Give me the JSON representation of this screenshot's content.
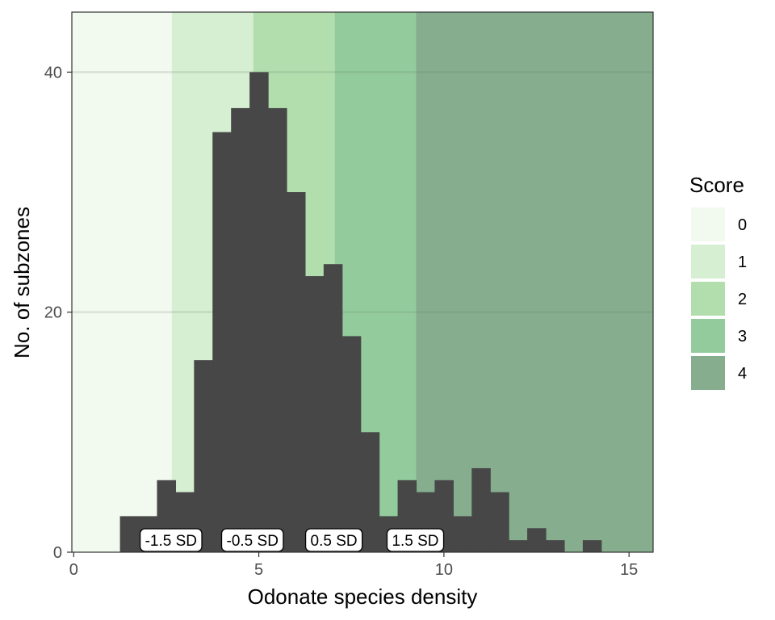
{
  "chart_data": {
    "type": "bar",
    "subtype": "histogram",
    "xlabel": "Odonate species density",
    "ylabel": "No. of subzones",
    "xlim": [
      -0.05,
      15.65
    ],
    "ylim": [
      0,
      45
    ],
    "x_ticks": [
      0,
      5,
      10,
      15
    ],
    "y_ticks": [
      0,
      20,
      40
    ],
    "grid": "horizontal major lines at 20 and 40",
    "bin_width": 0.5,
    "bins": [
      {
        "start": 1.25,
        "end": 1.75,
        "count": 3
      },
      {
        "start": 1.75,
        "end": 2.25,
        "count": 3
      },
      {
        "start": 2.25,
        "end": 2.75,
        "count": 6
      },
      {
        "start": 2.75,
        "end": 3.25,
        "count": 5
      },
      {
        "start": 3.25,
        "end": 3.75,
        "count": 16
      },
      {
        "start": 3.75,
        "end": 4.25,
        "count": 35
      },
      {
        "start": 4.25,
        "end": 4.75,
        "count": 37
      },
      {
        "start": 4.75,
        "end": 5.25,
        "count": 40
      },
      {
        "start": 5.25,
        "end": 5.75,
        "count": 37
      },
      {
        "start": 5.75,
        "end": 6.25,
        "count": 30
      },
      {
        "start": 6.25,
        "end": 6.75,
        "count": 23
      },
      {
        "start": 6.75,
        "end": 7.25,
        "count": 24
      },
      {
        "start": 7.25,
        "end": 7.75,
        "count": 18
      },
      {
        "start": 7.75,
        "end": 8.25,
        "count": 10
      },
      {
        "start": 8.25,
        "end": 8.75,
        "count": 3
      },
      {
        "start": 8.75,
        "end": 9.25,
        "count": 6
      },
      {
        "start": 9.25,
        "end": 9.75,
        "count": 5
      },
      {
        "start": 9.75,
        "end": 10.25,
        "count": 6
      },
      {
        "start": 10.25,
        "end": 10.75,
        "count": 3
      },
      {
        "start": 10.75,
        "end": 11.25,
        "count": 7
      },
      {
        "start": 11.25,
        "end": 11.75,
        "count": 5
      },
      {
        "start": 11.75,
        "end": 12.25,
        "count": 1
      },
      {
        "start": 12.25,
        "end": 12.75,
        "count": 2
      },
      {
        "start": 12.75,
        "end": 13.25,
        "count": 1
      },
      {
        "start": 13.25,
        "end": 13.75,
        "count": 0
      },
      {
        "start": 13.75,
        "end": 14.25,
        "count": 1
      }
    ],
    "bar_color": "#474747",
    "score_bands": [
      {
        "score": "0",
        "from": -0.05,
        "to": 2.65,
        "color": "#f2f9ef"
      },
      {
        "score": "1",
        "from": 2.65,
        "to": 4.85,
        "color": "#d6eed2"
      },
      {
        "score": "2",
        "from": 4.85,
        "to": 7.05,
        "color": "#b2deae"
      },
      {
        "score": "3",
        "from": 7.05,
        "to": 9.25,
        "color": "#93cb9c"
      },
      {
        "score": "4",
        "from": 9.25,
        "to": 15.65,
        "color": "#86ae8e"
      }
    ],
    "sd_annotations": [
      {
        "text": "-1.5 SD",
        "x": 2.65
      },
      {
        "text": "-0.5 SD",
        "x": 4.85
      },
      {
        "text": "0.5 SD",
        "x": 7.05
      },
      {
        "text": "1.5 SD",
        "x": 9.25
      }
    ],
    "legend": {
      "title": "Score",
      "position": "right",
      "items": [
        "0",
        "1",
        "2",
        "3",
        "4"
      ]
    }
  }
}
